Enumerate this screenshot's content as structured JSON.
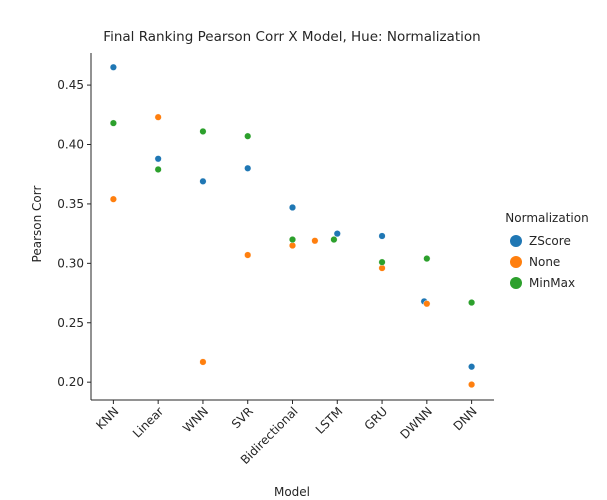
{
  "chart_data": {
    "type": "scatter",
    "title": "Final Ranking Pearson Corr X Model, Hue: Normalization",
    "xlabel": "Model",
    "ylabel": "Pearson Corr",
    "categories": [
      "KNN",
      "Linear",
      "WNN",
      "SVR",
      "Bidirectional",
      "LSTM",
      "GRU",
      "DWNN",
      "DNN"
    ],
    "ylim": [
      0.185,
      0.477
    ],
    "yticks": [
      "0.20",
      "0.25",
      "0.30",
      "0.35",
      "0.40",
      "0.45"
    ],
    "grid": false,
    "legend": {
      "title": "Normalization",
      "placement": "right"
    },
    "series": [
      {
        "name": "ZScore",
        "color": "#1f77b4",
        "values": [
          0.465,
          0.388,
          0.369,
          0.38,
          0.347,
          0.325,
          0.323,
          0.268,
          0.213
        ]
      },
      {
        "name": "None",
        "color": "#ff7f0e",
        "values": [
          0.354,
          0.423,
          0.217,
          0.307,
          0.315,
          0.319,
          0.296,
          0.266,
          0.198
        ]
      },
      {
        "name": "MinMax",
        "color": "#2ca02c",
        "values": [
          0.418,
          0.379,
          0.411,
          0.407,
          0.32,
          0.32,
          0.301,
          0.304,
          0.267
        ]
      }
    ]
  }
}
